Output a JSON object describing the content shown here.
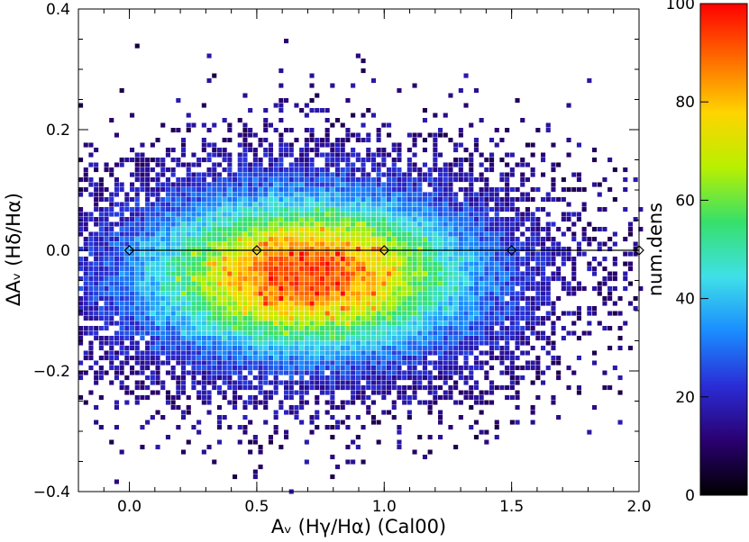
{
  "chart_data": [
    {
      "type": "heatmap",
      "xlabel": "Aᵥ (Hγ/Hα) (Cal00)",
      "ylabel": "ΔAᵥ (Hδ/Hα)",
      "xlim": [
        -0.2,
        2.0
      ],
      "ylim": [
        -0.4,
        0.4
      ],
      "x_ticks": [
        "0.0",
        "0.5",
        "1.0",
        "1.5",
        "2.0"
      ],
      "x_tick_values": [
        0.0,
        0.5,
        1.0,
        1.5,
        2.0
      ],
      "y_ticks": [
        "-0.4",
        "-0.2",
        "0.0",
        "0.2",
        "0.4"
      ],
      "y_tick_values": [
        -0.4,
        -0.2,
        0.0,
        0.2,
        0.4
      ],
      "density_peak": {
        "x": 0.7,
        "y": -0.04,
        "max_count": 100
      },
      "density_spread": {
        "x_sigma": 0.42,
        "y_sigma": 0.085
      },
      "overlay_line": {
        "type": "line",
        "x": [
          0.0,
          0.5,
          1.0,
          1.5,
          2.0
        ],
        "y": [
          0.0,
          0.0,
          0.0,
          0.0,
          0.0
        ],
        "marker": "diamond",
        "color": "#000000"
      },
      "grid": false
    },
    {
      "type": "colorbar",
      "label": "num.dens",
      "range": [
        0,
        100
      ],
      "ticks": [
        "0",
        "20",
        "40",
        "60",
        "80",
        "100"
      ],
      "tick_values": [
        0,
        20,
        40,
        60,
        80,
        100
      ],
      "colormap": [
        "#000000",
        "#2a0070",
        "#2a2cd6",
        "#1a8cff",
        "#3fe0e8",
        "#36e06a",
        "#b8f000",
        "#ffd400",
        "#ff6a00",
        "#ff0000"
      ]
    }
  ]
}
